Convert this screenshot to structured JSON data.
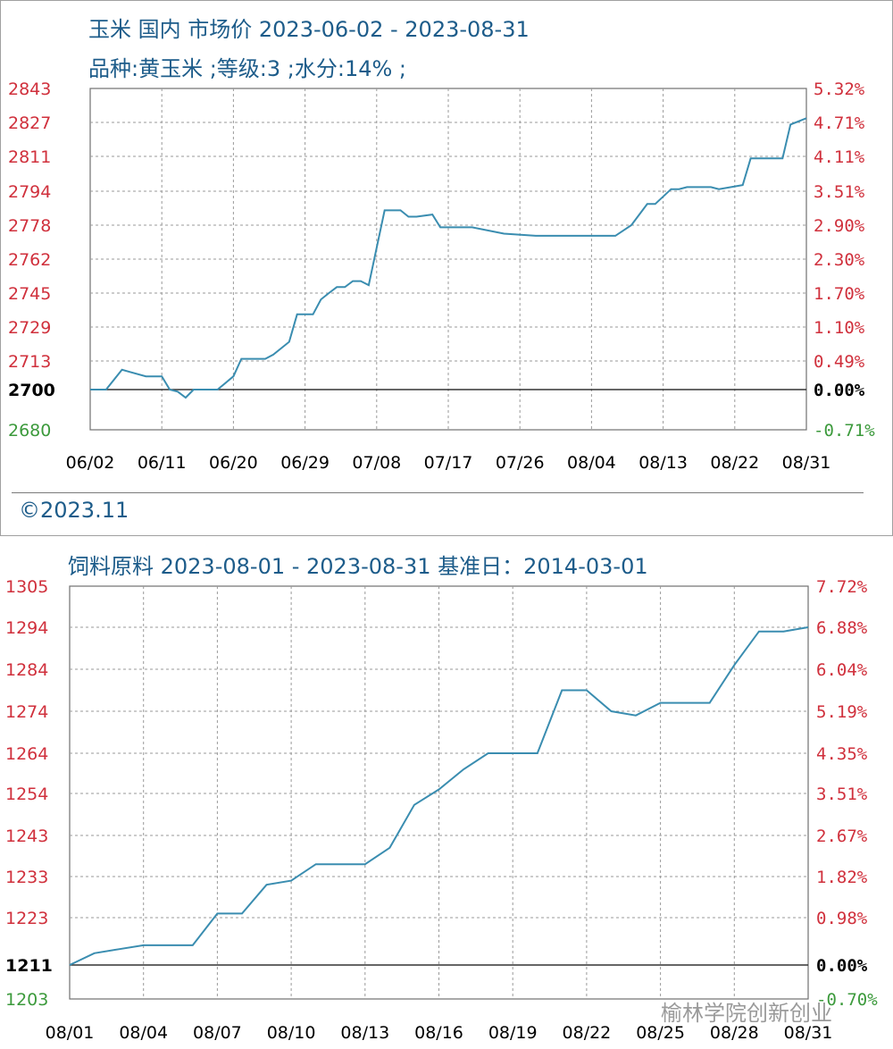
{
  "top_panel": {
    "title": "玉米 国内 市场价 2023-06-02 - 2023-08-31",
    "subtitle": "品种:黄玉米 ;等级:3 ;水分:14% ;",
    "copyright": "©2023.11"
  },
  "bottom_panel": {
    "title": "饲料原料 2023-08-01 - 2023-08-31    基准日：2014-03-01"
  },
  "watermark": "榆林学院创新创业",
  "colors": {
    "line": "#3a8db0",
    "axis_left": "#d0303c",
    "axis_right": "#d0303c",
    "axis_neg": "#3c9a3c",
    "base": "#000000",
    "grid": "#9a9a9a"
  },
  "chart_data": [
    {
      "type": "line",
      "categories": [
        "06/02",
        "06/11",
        "06/20",
        "06/29",
        "07/08",
        "07/17",
        "07/26",
        "08/04",
        "08/13",
        "08/22",
        "08/31"
      ],
      "left_ticks": [
        "2843",
        "2827",
        "2811",
        "2794",
        "2778",
        "2762",
        "2745",
        "2729",
        "2713",
        "2700",
        "2680"
      ],
      "right_ticks": [
        "5.32%",
        "4.71%",
        "4.11%",
        "3.51%",
        "2.90%",
        "2.30%",
        "1.70%",
        "1.10%",
        "0.49%",
        "0.00%",
        "-0.71%"
      ],
      "ylim": [
        2680,
        2843
      ],
      "baseline": 2700,
      "x_range": [
        0,
        90
      ],
      "x": [
        0,
        2,
        4,
        5,
        7,
        9,
        10,
        11,
        12,
        13,
        14,
        16,
        18,
        19,
        20,
        22,
        23,
        25,
        26,
        28,
        29,
        30,
        31,
        32,
        33,
        34,
        35,
        37,
        39,
        40,
        41,
        43,
        44,
        45,
        48,
        52,
        56,
        58,
        60,
        62,
        64,
        66,
        68,
        70,
        71,
        73,
        74,
        75,
        76,
        78,
        79,
        82,
        83,
        84,
        85,
        87,
        88,
        90
      ],
      "values": [
        2700,
        2700,
        2709,
        2708,
        2706,
        2706,
        2700,
        2699,
        2696,
        2700,
        2700,
        2700,
        2706,
        2714,
        2714,
        2714,
        2716,
        2722,
        2735,
        2735,
        2742,
        2745,
        2748,
        2748,
        2751,
        2751,
        2749,
        2785,
        2785,
        2782,
        2782,
        2783,
        2777,
        2777,
        2777,
        2774,
        2773,
        2773,
        2773,
        2773,
        2773,
        2773,
        2778,
        2788,
        2788,
        2795,
        2795,
        2796,
        2796,
        2796,
        2795,
        2797,
        2810,
        2810,
        2810,
        2810,
        2826,
        2829
      ]
    },
    {
      "type": "line",
      "categories": [
        "08/01",
        "08/04",
        "08/07",
        "08/10",
        "08/13",
        "08/16",
        "08/19",
        "08/22",
        "08/25",
        "08/28",
        "08/31"
      ],
      "left_ticks": [
        "1305",
        "1294",
        "1284",
        "1274",
        "1264",
        "1254",
        "1243",
        "1233",
        "1223",
        "1211",
        "1203"
      ],
      "right_ticks": [
        "7.72%",
        "6.88%",
        "6.04%",
        "5.19%",
        "4.35%",
        "3.51%",
        "2.67%",
        "1.82%",
        "0.98%",
        "0.00%",
        "-0.70%"
      ],
      "ylim": [
        1203,
        1305
      ],
      "baseline": 1211,
      "x_range": [
        0,
        30
      ],
      "x": [
        0,
        1,
        2,
        3,
        4,
        5,
        6,
        7,
        8,
        9,
        10,
        11,
        12,
        13,
        14,
        15,
        16,
        17,
        18,
        19,
        20,
        21,
        22,
        23,
        24,
        25,
        26,
        27,
        28,
        29,
        30
      ],
      "values": [
        1211,
        1214,
        1215,
        1216,
        1216,
        1216,
        1224,
        1224,
        1231,
        1232,
        1236,
        1236,
        1236,
        1240,
        1251,
        1255,
        1260,
        1264,
        1264,
        1264,
        1279,
        1279,
        1274,
        1273,
        1276,
        1276,
        1276,
        1285,
        1293,
        1293,
        1294
      ]
    }
  ]
}
